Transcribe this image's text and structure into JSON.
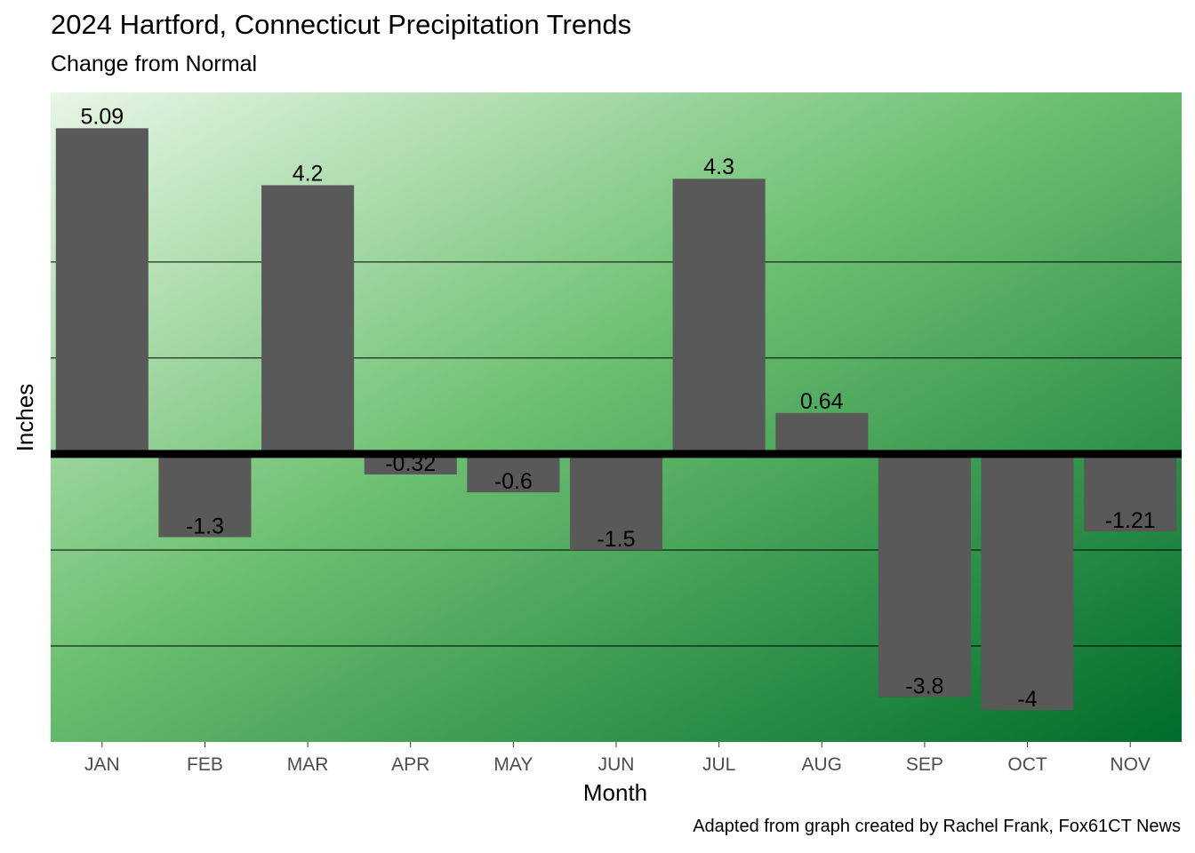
{
  "chart_data": {
    "type": "bar",
    "title": "2024 Hartford, Connecticut Precipitation Trends",
    "subtitle": "Change from Normal",
    "xlabel": "Month",
    "ylabel": "Inches",
    "caption": "Adapted from graph created by Rachel Frank, Fox61CT News",
    "categories": [
      "JAN",
      "FEB",
      "MAR",
      "APR",
      "MAY",
      "JUN",
      "JUL",
      "AUG",
      "SEP",
      "OCT",
      "NOV"
    ],
    "values": [
      5.09,
      -1.3,
      4.2,
      -0.32,
      -0.6,
      -1.5,
      4.3,
      0.64,
      -3.8,
      -4,
      -1.21
    ],
    "data_labels": [
      "5.09",
      "-1.3",
      "4.2",
      "-0.32",
      "-0.6",
      "-1.5",
      "4.3",
      "0.64",
      "-3.8",
      "-4",
      "-1.21"
    ],
    "ylim": [
      -4.5,
      5.65
    ],
    "gridlines": [
      -3,
      -1.5,
      1.5,
      3
    ],
    "zero_line": true,
    "y_tick_labels_shown": false,
    "colors": {
      "bar": "#595959",
      "background_light": "#e8f6e6",
      "background_mid": "#6cc070",
      "background_dark": "#006d2c"
    }
  }
}
